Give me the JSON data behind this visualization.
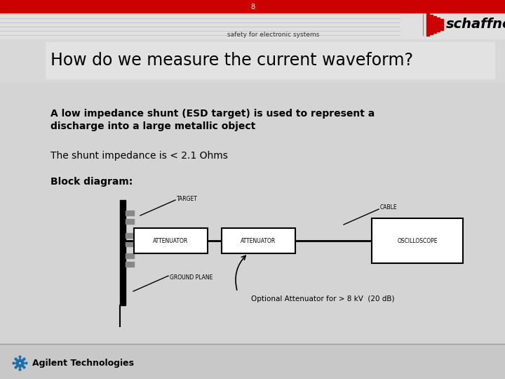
{
  "slide_number": "8",
  "red_bar_color": "#cc0000",
  "slide_bg": "#d4d4d4",
  "logo_stripe_bg": "#e0e0e0",
  "title_box_bg": "#d0d0d0",
  "white": "#ffffff",
  "black": "#000000",
  "schaffner_text": "schaffner",
  "tagline": "safety for electronic systems",
  "title": "How do we measure the current waveform?",
  "body1_line1": "A low impedance shunt (ESD target) is used to represent a",
  "body1_line2": "discharge into a large metallic object",
  "body2": "The shunt impedance is < 2.1 Ohms",
  "body3": "Block diagram:",
  "opt_label": "Optional Attenuator for > 8 kV  (20 dB)",
  "agilent_text": "Agilent Technologies",
  "label_target": "TARGET",
  "label_cable": "CABLE",
  "label_gnd": "GROUND PLANE",
  "label_att1": "ATTENUATOR",
  "label_att2": "ATTENUATOR",
  "label_osc": "OSCILLOSCOPE",
  "footer_bg": "#c8c8c8",
  "agilent_blue": "#1a6fa8"
}
